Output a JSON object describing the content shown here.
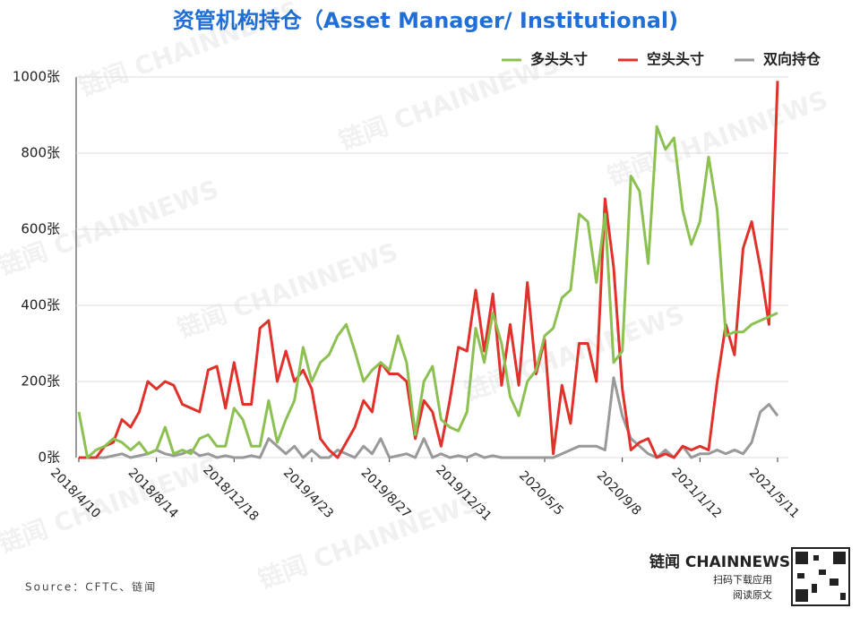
{
  "chart_data": {
    "type": "line",
    "title": "资管机构持仓（Asset Manager/ Institutional)",
    "source": "Source：CFTC、链闻",
    "brand": "链闻 CHAINNEWS",
    "brand_sub1": "扫码下载应用",
    "brand_sub2": "阅读原文",
    "watermark": "链闻 CHAINNEWS",
    "categories": [
      "2018/4/10",
      null,
      null,
      null,
      null,
      null,
      null,
      null,
      null,
      "2018/8/14",
      null,
      null,
      null,
      null,
      null,
      null,
      null,
      null,
      "2018/12/18",
      null,
      null,
      null,
      null,
      null,
      null,
      null,
      null,
      "2019/4/23",
      null,
      null,
      null,
      null,
      null,
      null,
      null,
      null,
      "2019/8/27",
      null,
      null,
      null,
      null,
      null,
      null,
      null,
      null,
      "2019/12/31",
      null,
      null,
      null,
      null,
      null,
      null,
      null,
      null,
      "2020/5/5",
      null,
      null,
      null,
      null,
      null,
      null,
      null,
      null,
      "2020/9/8",
      null,
      null,
      null,
      null,
      null,
      null,
      null,
      null,
      "2021/1/12",
      null,
      null,
      null,
      null,
      null,
      null,
      null,
      null,
      "2021/5/11"
    ],
    "series": [
      {
        "name": "多头头寸",
        "color": "#8cc152",
        "values": [
          120,
          0,
          20,
          30,
          50,
          40,
          20,
          40,
          10,
          20,
          80,
          10,
          20,
          10,
          50,
          60,
          30,
          30,
          130,
          100,
          30,
          30,
          150,
          40,
          100,
          150,
          290,
          200,
          250,
          270,
          320,
          350,
          280,
          200,
          230,
          250,
          230,
          320,
          250,
          60,
          200,
          240,
          100,
          80,
          70,
          120,
          340,
          250,
          380,
          300,
          160,
          110,
          200,
          230,
          320,
          340,
          420,
          440,
          640,
          620,
          460,
          640,
          250,
          280,
          740,
          700,
          510,
          870,
          810,
          840,
          650,
          560,
          620,
          790,
          650,
          320,
          330,
          330,
          350,
          360,
          370,
          380
        ]
      },
      {
        "name": "空头头寸",
        "color": "#e0312a",
        "values": [
          0,
          0,
          0,
          30,
          40,
          100,
          80,
          120,
          200,
          180,
          200,
          190,
          140,
          130,
          120,
          230,
          240,
          130,
          250,
          140,
          140,
          340,
          360,
          200,
          280,
          200,
          230,
          180,
          50,
          20,
          0,
          40,
          80,
          150,
          120,
          250,
          220,
          220,
          200,
          50,
          150,
          120,
          30,
          150,
          290,
          280,
          440,
          280,
          430,
          190,
          350,
          190,
          460,
          220,
          310,
          10,
          190,
          90,
          300,
          300,
          200,
          680,
          500,
          180,
          20,
          40,
          50,
          0,
          10,
          0,
          30,
          20,
          30,
          20,
          200,
          350,
          270,
          550,
          620,
          500,
          350,
          990
        ]
      },
      {
        "name": "双向持仓",
        "color": "#999999",
        "values": [
          0,
          0,
          0,
          0,
          5,
          10,
          0,
          5,
          10,
          20,
          10,
          5,
          10,
          20,
          5,
          10,
          0,
          5,
          0,
          0,
          5,
          0,
          50,
          30,
          10,
          30,
          0,
          20,
          0,
          0,
          20,
          10,
          0,
          30,
          10,
          50,
          0,
          5,
          10,
          0,
          50,
          0,
          10,
          0,
          5,
          0,
          10,
          0,
          5,
          0,
          0,
          0,
          0,
          0,
          0,
          0,
          10,
          20,
          30,
          30,
          30,
          20,
          210,
          110,
          50,
          30,
          10,
          0,
          20,
          0,
          30,
          0,
          10,
          10,
          20,
          10,
          20,
          10,
          40,
          120,
          140,
          110
        ]
      }
    ],
    "ylim": [
      0,
      1000
    ],
    "yticks": [
      {
        "value": 0,
        "label": "0张"
      },
      {
        "value": 200,
        "label": "200张"
      },
      {
        "value": 400,
        "label": "400张"
      },
      {
        "value": 600,
        "label": "600张"
      },
      {
        "value": 800,
        "label": "800张"
      },
      {
        "value": 1000,
        "label": "1000张"
      }
    ],
    "grid": true,
    "legend": "top-right"
  }
}
